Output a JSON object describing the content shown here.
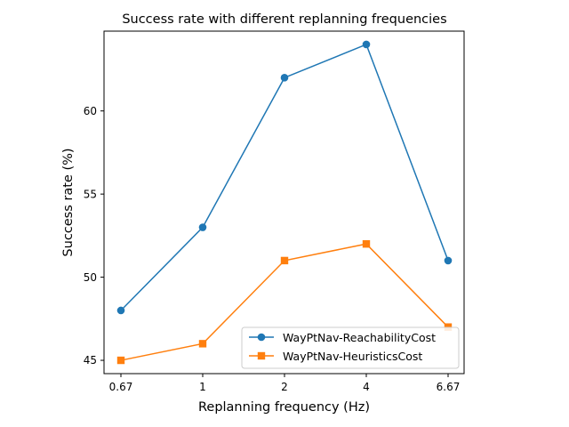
{
  "chart_data": {
    "type": "line",
    "title": "Success rate with different replanning frequencies",
    "xlabel": "Replanning frequency (Hz)",
    "ylabel": "Success rate (%)",
    "categories": [
      "0.67",
      "1",
      "2",
      "4",
      "6.67"
    ],
    "y_ticks": [
      "45",
      "50",
      "55",
      "60"
    ],
    "ylim": [
      44.2,
      64.8
    ],
    "grid": false,
    "legend_position": "lower-right",
    "series": [
      {
        "name": "WayPtNav-ReachabilityCost",
        "values": [
          48,
          53,
          62,
          64,
          51
        ],
        "color": "#1f77b4",
        "marker": "circle"
      },
      {
        "name": "WayPtNav-HeuristicsCost",
        "values": [
          45,
          46,
          51,
          52,
          47
        ],
        "color": "#ff7f0e",
        "marker": "square"
      }
    ]
  }
}
